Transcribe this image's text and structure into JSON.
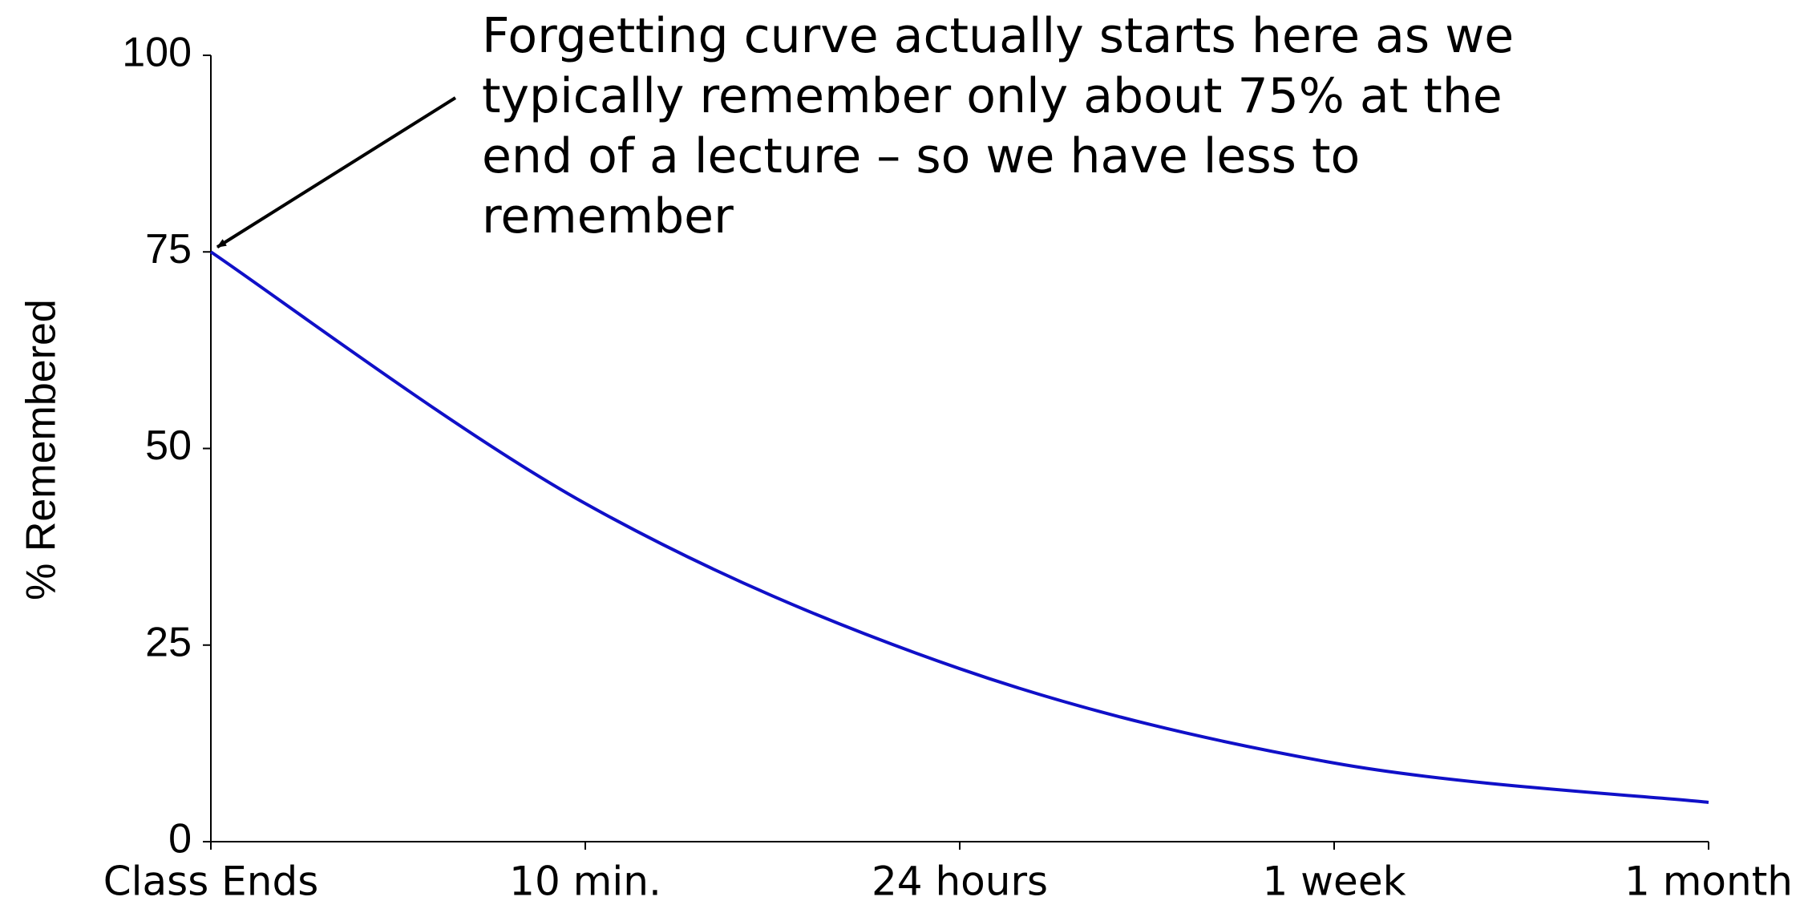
{
  "chart_data": {
    "type": "line",
    "y_label": "% Remembered",
    "categories": [
      "Class Ends",
      "10 min.",
      "24 hours",
      "1 week",
      "1 month"
    ],
    "series": [
      {
        "name": "% Remembered",
        "color": "#1010c8",
        "values": [
          75,
          43,
          22,
          10,
          5
        ]
      }
    ],
    "ylim": [
      0,
      100
    ],
    "yticks": [
      0,
      25,
      50,
      75,
      100
    ],
    "grid": false,
    "annotation": {
      "lines": [
        "Forgetting curve actually starts here as we",
        "typically remember only about 75% at the",
        "end of a lecture – so we have less to",
        "remember"
      ],
      "points_to_index": 0
    }
  }
}
